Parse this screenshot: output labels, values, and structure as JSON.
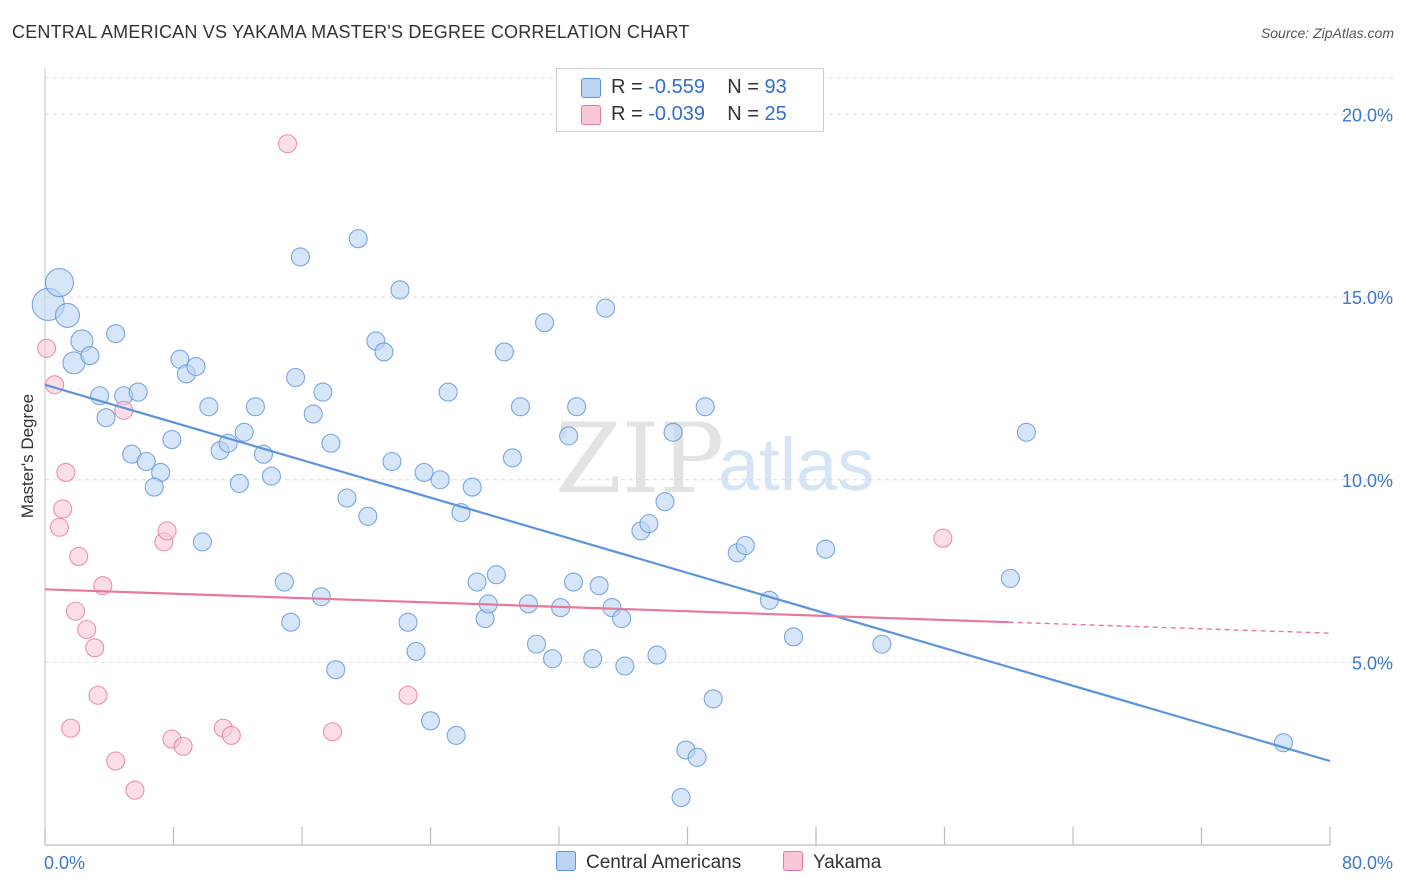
{
  "header": {
    "title": "CENTRAL AMERICAN VS YAKAMA MASTER'S DEGREE CORRELATION CHART",
    "source": "Source: ZipAtlas.com"
  },
  "legend": {
    "rows": [
      {
        "r_label": "R =",
        "r_value": "-0.559",
        "n_label": "N =",
        "n_value": "93",
        "color": "#bcd4f4"
      },
      {
        "r_label": "R =",
        "r_value": "-0.039",
        "n_label": "N =",
        "n_value": "25",
        "color": "#f9c8d6"
      }
    ]
  },
  "bottom_legend": [
    "Central Americans",
    "Yakama"
  ],
  "watermark": {
    "zip": "ZIP",
    "atlas": "atlas"
  },
  "chart_data": {
    "type": "scatter",
    "title": "CENTRAL AMERICAN VS YAKAMA MASTER'S DEGREE CORRELATION CHART",
    "xlabel": "",
    "ylabel": "Master's Degree",
    "xlim": [
      0,
      80
    ],
    "ylim": [
      0,
      21
    ],
    "x_tick_labels": [
      "0.0%",
      "80.0%"
    ],
    "y_ticks": [
      5,
      10,
      15,
      20
    ],
    "y_tick_labels": [
      "5.0%",
      "10.0%",
      "15.0%",
      "20.0%"
    ],
    "grid": true,
    "legend_position": "top-center",
    "series": [
      {
        "name": "Central Americans",
        "color": "#5b94dc",
        "fill": "#bcd4f4",
        "trend": {
          "x": [
            0,
            80
          ],
          "y": [
            12.6,
            2.3
          ]
        },
        "points": [
          [
            0.2,
            14.8,
            16
          ],
          [
            0.9,
            15.4,
            14
          ],
          [
            1.4,
            14.5,
            12
          ],
          [
            2.3,
            13.8,
            11
          ],
          [
            1.8,
            13.2,
            11
          ],
          [
            2.8,
            13.4,
            9
          ],
          [
            4.4,
            14.0,
            9
          ],
          [
            3.4,
            12.3,
            9
          ],
          [
            3.8,
            11.7,
            9
          ],
          [
            4.9,
            12.3,
            9
          ],
          [
            5.8,
            12.4,
            9
          ],
          [
            5.4,
            10.7,
            9
          ],
          [
            6.3,
            10.5,
            9
          ],
          [
            7.2,
            10.2,
            9
          ],
          [
            6.8,
            9.8,
            9
          ],
          [
            7.9,
            11.1,
            9
          ],
          [
            8.4,
            13.3,
            9
          ],
          [
            8.8,
            12.9,
            9
          ],
          [
            9.4,
            13.1,
            9
          ],
          [
            10.2,
            12.0,
            9
          ],
          [
            9.8,
            8.3,
            9
          ],
          [
            10.9,
            10.8,
            9
          ],
          [
            11.4,
            11.0,
            9
          ],
          [
            12.1,
            9.9,
            9
          ],
          [
            12.4,
            11.3,
            9
          ],
          [
            13.1,
            12.0,
            9
          ],
          [
            13.6,
            10.7,
            9
          ],
          [
            14.1,
            10.1,
            9
          ],
          [
            14.9,
            7.2,
            9
          ],
          [
            15.3,
            6.1,
            9
          ],
          [
            15.6,
            12.8,
            9
          ],
          [
            15.9,
            16.1,
            9
          ],
          [
            16.7,
            11.8,
            9
          ],
          [
            17.2,
            6.8,
            9
          ],
          [
            17.8,
            11.0,
            9
          ],
          [
            18.1,
            4.8,
            9
          ],
          [
            17.3,
            12.4,
            9
          ],
          [
            18.8,
            9.5,
            9
          ],
          [
            19.5,
            16.6,
            9
          ],
          [
            20.1,
            9.0,
            9
          ],
          [
            20.6,
            13.8,
            9
          ],
          [
            21.1,
            13.5,
            9
          ],
          [
            21.6,
            10.5,
            9
          ],
          [
            22.1,
            15.2,
            9
          ],
          [
            22.6,
            6.1,
            9
          ],
          [
            23.1,
            5.3,
            9
          ],
          [
            23.6,
            10.2,
            9
          ],
          [
            24.0,
            3.4,
            9
          ],
          [
            24.6,
            10.0,
            9
          ],
          [
            25.1,
            12.4,
            9
          ],
          [
            25.6,
            3.0,
            9
          ],
          [
            25.9,
            9.1,
            9
          ],
          [
            26.6,
            9.8,
            9
          ],
          [
            26.9,
            7.2,
            9
          ],
          [
            27.4,
            6.2,
            9
          ],
          [
            27.6,
            6.6,
            9
          ],
          [
            28.1,
            7.4,
            9
          ],
          [
            28.6,
            13.5,
            9
          ],
          [
            29.1,
            10.6,
            9
          ],
          [
            29.6,
            12.0,
            9
          ],
          [
            30.1,
            6.6,
            9
          ],
          [
            30.6,
            5.5,
            9
          ],
          [
            31.1,
            14.3,
            9
          ],
          [
            31.6,
            5.1,
            9
          ],
          [
            32.1,
            6.5,
            9
          ],
          [
            32.6,
            11.2,
            9
          ],
          [
            32.9,
            7.2,
            9
          ],
          [
            33.1,
            12.0,
            9
          ],
          [
            34.1,
            5.1,
            9
          ],
          [
            34.5,
            7.1,
            9
          ],
          [
            34.9,
            14.7,
            9
          ],
          [
            35.3,
            6.5,
            9
          ],
          [
            35.9,
            6.2,
            9
          ],
          [
            36.1,
            4.9,
            9
          ],
          [
            37.1,
            8.6,
            9
          ],
          [
            37.6,
            8.8,
            9
          ],
          [
            38.1,
            5.2,
            9
          ],
          [
            38.6,
            9.4,
            9
          ],
          [
            39.1,
            11.3,
            9
          ],
          [
            39.6,
            1.3,
            9
          ],
          [
            39.9,
            2.6,
            9
          ],
          [
            40.6,
            2.4,
            9
          ],
          [
            41.1,
            12.0,
            9
          ],
          [
            41.6,
            4.0,
            9
          ],
          [
            43.1,
            8.0,
            9
          ],
          [
            43.6,
            8.2,
            9
          ],
          [
            45.1,
            6.7,
            9
          ],
          [
            46.6,
            5.7,
            9
          ],
          [
            48.6,
            8.1,
            9
          ],
          [
            52.1,
            5.5,
            9
          ],
          [
            60.1,
            7.3,
            9
          ],
          [
            61.1,
            11.3,
            9
          ],
          [
            77.1,
            2.8,
            9
          ]
        ]
      },
      {
        "name": "Yakama",
        "color": "#e8789a",
        "fill": "#f9c8d6",
        "trend": {
          "x": [
            0,
            60
          ],
          "y": [
            7.0,
            6.1
          ]
        },
        "trend_dashed": {
          "x": [
            60,
            80
          ],
          "y": [
            6.1,
            5.8
          ]
        },
        "points": [
          [
            0.1,
            13.6,
            9
          ],
          [
            0.6,
            12.6,
            9
          ],
          [
            0.9,
            8.7,
            9
          ],
          [
            1.1,
            9.2,
            9
          ],
          [
            1.3,
            10.2,
            9
          ],
          [
            1.6,
            3.2,
            9
          ],
          [
            1.9,
            6.4,
            9
          ],
          [
            2.1,
            7.9,
            9
          ],
          [
            2.6,
            5.9,
            9
          ],
          [
            3.1,
            5.4,
            9
          ],
          [
            3.3,
            4.1,
            9
          ],
          [
            3.6,
            7.1,
            9
          ],
          [
            4.4,
            2.3,
            9
          ],
          [
            4.9,
            11.9,
            9
          ],
          [
            5.6,
            1.5,
            9
          ],
          [
            7.4,
            8.3,
            9
          ],
          [
            7.6,
            8.6,
            9
          ],
          [
            7.9,
            2.9,
            9
          ],
          [
            8.6,
            2.7,
            9
          ],
          [
            11.1,
            3.2,
            9
          ],
          [
            11.6,
            3.0,
            9
          ],
          [
            15.1,
            19.2,
            9
          ],
          [
            17.9,
            3.1,
            9
          ],
          [
            22.6,
            4.1,
            9
          ],
          [
            55.9,
            8.4,
            9
          ]
        ]
      }
    ]
  }
}
